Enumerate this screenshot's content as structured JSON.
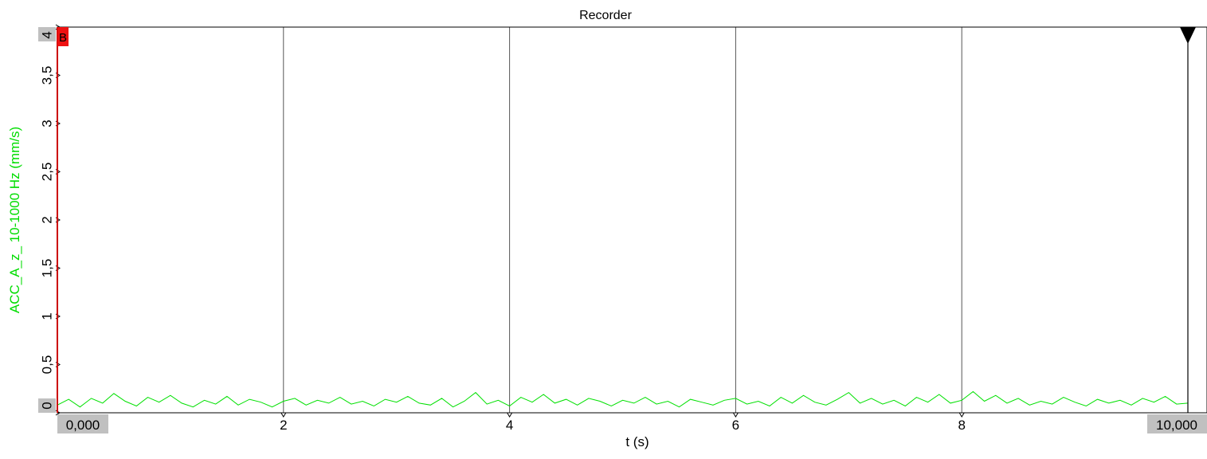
{
  "chart_data": {
    "type": "line",
    "title": "Recorder",
    "xlabel": "t (s)",
    "ylabel": "ACC_A_z_ 10-1000 Hz (mm/s)",
    "xlim": [
      0,
      10
    ],
    "ylim": [
      0,
      4
    ],
    "x_ticks": [
      2,
      4,
      6,
      8
    ],
    "x_tick_labels": [
      "2",
      "4",
      "6",
      "8"
    ],
    "x_start_label": "0,000",
    "x_end_label": "10,000",
    "y_ticks": [
      0,
      0.5,
      1,
      1.5,
      2,
      2.5,
      3,
      3.5,
      4
    ],
    "y_tick_labels": [
      "0",
      "0,5",
      "1",
      "1,5",
      "2",
      "2,5",
      "3",
      "3,5",
      "4"
    ],
    "grid": "vertical",
    "cursor_marker": "B",
    "series": [
      {
        "color": "#00e000",
        "x": [
          0.0,
          0.1,
          0.2,
          0.3,
          0.4,
          0.5,
          0.6,
          0.7,
          0.8,
          0.9,
          1.0,
          1.1,
          1.2,
          1.3,
          1.4,
          1.5,
          1.6,
          1.7,
          1.8,
          1.9,
          2.0,
          2.1,
          2.2,
          2.3,
          2.4,
          2.5,
          2.6,
          2.7,
          2.8,
          2.9,
          3.0,
          3.1,
          3.2,
          3.3,
          3.4,
          3.5,
          3.6,
          3.7,
          3.8,
          3.9,
          4.0,
          4.1,
          4.2,
          4.3,
          4.4,
          4.5,
          4.6,
          4.7,
          4.8,
          4.9,
          5.0,
          5.1,
          5.2,
          5.3,
          5.4,
          5.5,
          5.6,
          5.7,
          5.8,
          5.9,
          6.0,
          6.1,
          6.2,
          6.3,
          6.4,
          6.5,
          6.6,
          6.7,
          6.8,
          6.9,
          7.0,
          7.1,
          7.2,
          7.3,
          7.4,
          7.5,
          7.6,
          7.7,
          7.8,
          7.9,
          8.0,
          8.1,
          8.2,
          8.3,
          8.4,
          8.5,
          8.6,
          8.7,
          8.8,
          8.9,
          9.0,
          9.1,
          9.2,
          9.3,
          9.4,
          9.5,
          9.6,
          9.7,
          9.8,
          9.9,
          10.0
        ],
        "y": [
          0.08,
          0.14,
          0.06,
          0.15,
          0.1,
          0.2,
          0.12,
          0.07,
          0.16,
          0.11,
          0.18,
          0.1,
          0.06,
          0.13,
          0.09,
          0.17,
          0.08,
          0.14,
          0.11,
          0.06,
          0.12,
          0.15,
          0.08,
          0.13,
          0.1,
          0.16,
          0.09,
          0.12,
          0.07,
          0.14,
          0.11,
          0.17,
          0.1,
          0.08,
          0.15,
          0.06,
          0.12,
          0.21,
          0.09,
          0.13,
          0.07,
          0.16,
          0.11,
          0.19,
          0.1,
          0.14,
          0.08,
          0.15,
          0.12,
          0.07,
          0.13,
          0.1,
          0.16,
          0.09,
          0.12,
          0.06,
          0.14,
          0.11,
          0.08,
          0.13,
          0.15,
          0.09,
          0.12,
          0.07,
          0.16,
          0.1,
          0.18,
          0.11,
          0.08,
          0.14,
          0.21,
          0.1,
          0.15,
          0.09,
          0.13,
          0.07,
          0.16,
          0.11,
          0.19,
          0.1,
          0.13,
          0.22,
          0.12,
          0.18,
          0.1,
          0.15,
          0.08,
          0.12,
          0.09,
          0.16,
          0.11,
          0.07,
          0.14,
          0.1,
          0.13,
          0.08,
          0.15,
          0.11,
          0.17,
          0.09,
          0.1
        ]
      }
    ]
  }
}
